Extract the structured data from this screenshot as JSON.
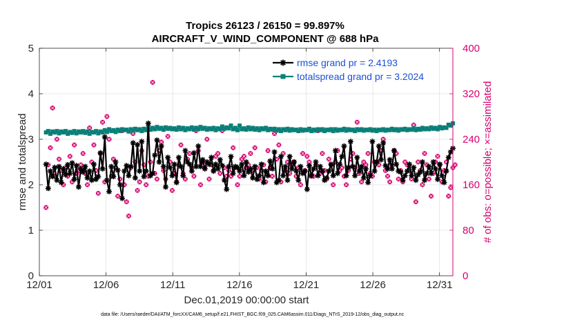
{
  "chart_data": {
    "type": "line",
    "title_line1": "Tropics 26123 / 26150 = 99.897%",
    "title_line2": "AIRCRAFT_V_WIND_COMPONENT @ 688 hPa",
    "xlabel": "Dec.01,2019 00:00:00 start",
    "ylabel_left": "rmse and totalspread",
    "ylabel_right": "# of obs: o=possible; ×=assimilated",
    "footnote": "data file: /Users/raeder/DAI/ATM_forcXX/CAM6_setup/f.e21.FHIST_BGC.f09_025.CAM6assim.011/Diags_NTrS_2019-12/obs_diag_output.nc",
    "xlim": [
      1,
      32
    ],
    "ylim_left": [
      0,
      5
    ],
    "ylim_right": [
      0,
      400
    ],
    "x_ticks": [
      1,
      6,
      11,
      16,
      21,
      26,
      31
    ],
    "x_tick_labels": [
      "12/01",
      "12/06",
      "12/11",
      "12/16",
      "12/21",
      "12/26",
      "12/31"
    ],
    "y_ticks_left": [
      "0",
      "1",
      "2",
      "3",
      "4",
      "5"
    ],
    "y_ticks_right": [
      "0",
      "80",
      "160",
      "240",
      "320",
      "400"
    ],
    "grid": true,
    "legend": [
      {
        "label": "rmse grand pr = 2.4193",
        "color": "#000000"
      },
      {
        "label": "totalspread grand pr = 3.2024",
        "color": "#0b7f78"
      }
    ],
    "series": [
      {
        "name": "rmse",
        "axis": "left",
        "color": "#000000",
        "values": [
          2.45,
          1.92,
          2.3,
          2.18,
          2.38,
          2.1,
          2.4,
          2.05,
          2.35,
          2.22,
          2.44,
          2.25,
          2.48,
          2.12,
          2.42,
          1.95,
          2.35,
          2.28,
          2.4,
          2.15,
          2.3,
          2.1,
          2.45,
          2.12,
          2.18,
          2.7,
          2.35,
          3.05,
          2.1,
          1.85,
          2.4,
          2.18,
          2.5,
          2.32,
          2.0,
          1.7,
          2.3,
          2.42,
          2.2,
          2.4,
          2.92,
          2.15,
          2.88,
          2.3,
          2.95,
          2.18,
          2.3,
          3.35,
          2.2,
          2.25,
          2.65,
          2.98,
          2.5,
          2.85,
          2.4,
          1.95,
          2.6,
          2.38,
          2.2,
          2.45,
          2.05,
          2.6,
          2.4,
          2.2,
          2.75,
          2.5,
          2.45,
          2.3,
          2.7,
          2.4,
          2.85,
          2.4,
          2.55,
          2.35,
          2.5,
          2.45,
          2.6,
          2.3,
          2.45,
          2.35,
          2.55,
          2.42,
          2.1,
          1.9,
          2.4,
          2.62,
          2.25,
          2.4,
          2.38,
          2.3,
          2.45,
          2.2,
          2.5,
          2.28,
          2.35,
          2.15,
          2.4,
          2.12,
          2.2,
          2.45,
          2.05,
          2.3,
          2.2,
          2.52,
          2.35,
          2.72,
          2.05,
          2.1,
          2.62,
          2.2,
          2.4,
          2.1,
          2.62,
          2.35,
          2.5,
          2.3,
          2.1,
          2.4,
          2.25,
          2.3,
          1.9,
          2.42,
          2.2,
          2.35,
          2.5,
          2.2,
          2.4,
          2.3,
          2.1,
          2.15,
          2.3,
          2.45,
          2.2,
          2.75,
          2.25,
          2.45,
          2.62,
          2.85,
          2.2,
          2.38,
          2.95,
          2.4,
          2.2,
          2.6,
          2.3,
          2.4,
          2.15,
          2.35,
          2.05,
          2.2,
          2.95,
          2.3,
          2.5,
          2.85,
          2.55,
          2.92,
          2.42,
          2.35,
          2.55,
          2.35,
          2.75,
          2.45,
          2.3,
          2.28,
          2.1,
          2.2,
          2.3,
          2.45,
          2.2,
          2.38,
          2.1,
          2.22,
          2.28,
          2.5,
          2.1,
          2.25,
          2.4,
          2.25,
          2.5,
          2.35,
          2.12,
          2.45,
          2.2,
          2.05,
          2.3,
          2.6,
          2.72,
          2.8
        ]
      },
      {
        "name": "totalspread",
        "axis": "left",
        "color": "#0b7f78",
        "values": [
          3.15,
          3.18,
          3.12,
          3.17,
          3.15,
          3.18,
          3.13,
          3.17,
          3.15,
          3.18,
          3.12,
          3.16,
          3.14,
          3.18,
          3.13,
          3.17,
          3.15,
          3.18,
          3.14,
          3.17,
          3.12,
          3.16,
          3.15,
          3.18,
          3.13,
          3.17,
          3.15,
          3.2,
          3.16,
          3.22,
          3.18,
          3.2,
          3.16,
          3.21,
          3.18,
          3.22,
          3.2,
          3.21,
          3.17,
          3.22,
          3.19,
          3.23,
          3.2,
          3.22,
          3.18,
          3.23,
          3.2,
          3.26,
          3.21,
          3.25,
          3.22,
          3.27,
          3.23,
          3.25,
          3.21,
          3.26,
          3.23,
          3.25,
          3.22,
          3.24,
          3.21,
          3.26,
          3.22,
          3.25,
          3.2,
          3.24,
          3.22,
          3.26,
          3.21,
          3.25,
          3.22,
          3.27,
          3.23,
          3.25,
          3.21,
          3.24,
          3.22,
          3.25,
          3.2,
          3.24,
          3.22,
          3.28,
          3.23,
          3.26,
          3.24,
          3.3,
          3.22,
          3.25,
          3.2,
          3.3,
          3.22,
          3.24,
          3.21,
          3.26,
          3.22,
          3.25,
          3.21,
          3.24,
          3.2,
          3.24,
          3.22,
          3.25,
          3.2,
          3.23,
          3.21,
          3.23,
          3.19,
          3.22,
          3.18,
          3.22,
          3.2,
          3.23,
          3.19,
          3.22,
          3.2,
          3.21,
          3.18,
          3.22,
          3.19,
          3.21,
          3.2,
          3.23,
          3.18,
          3.21,
          3.19,
          3.22,
          3.2,
          3.22,
          3.18,
          3.21,
          3.2,
          3.22,
          3.18,
          3.22,
          3.19,
          3.21,
          3.2,
          3.23,
          3.19,
          3.22,
          3.2,
          3.21,
          3.18,
          3.22,
          3.2,
          3.22,
          3.19,
          3.21,
          3.2,
          3.22,
          3.19,
          3.21,
          3.18,
          3.21,
          3.2,
          3.22,
          3.19,
          3.21,
          3.2,
          3.23,
          3.2,
          3.22,
          3.19,
          3.22,
          3.21,
          3.23,
          3.2,
          3.22,
          3.21,
          3.24,
          3.2,
          3.23,
          3.21,
          3.25,
          3.22,
          3.24,
          3.22,
          3.26,
          3.23,
          3.25,
          3.22,
          3.27,
          3.24,
          3.26,
          3.25,
          3.32,
          3.3,
          3.35
        ]
      },
      {
        "name": "obs_count",
        "axis": "right",
        "color": "#d6006f",
        "values": [
          120,
          195,
          225,
          295,
          175,
          240,
          205,
          185,
          160,
          190,
          175,
          210,
          165,
          230,
          180,
          185,
          195,
          215,
          180,
          160,
          260,
          200,
          230,
          185,
          145,
          215,
          270,
          165,
          280,
          240,
          175,
          205,
          190,
          140,
          170,
          255,
          160,
          130,
          105,
          190,
          250,
          200,
          150,
          165,
          220,
          195,
          160,
          175,
          200,
          340,
          180,
          170,
          220,
          235,
          185,
          170,
          245,
          200,
          150,
          180,
          165,
          195,
          230,
          180,
          170,
          205,
          215,
          190,
          175,
          255,
          220,
          160,
          200,
          190,
          240,
          170,
          195,
          185,
          210,
          215,
          180,
          255,
          190,
          175,
          185,
          175,
          225,
          190,
          160,
          175,
          205,
          210,
          190,
          195,
          215,
          185,
          225,
          190,
          170,
          185,
          195,
          165,
          220,
          190,
          175,
          250,
          205,
          230,
          165,
          215,
          185,
          200,
          180,
          195,
          200,
          175,
          190,
          160,
          215,
          185,
          210,
          200,
          175,
          175,
          195,
          255,
          180,
          215,
          185,
          170,
          205,
          195,
          160,
          200,
          220,
          185,
          190,
          175,
          160,
          185,
          205,
          215,
          190,
          270,
          180,
          165,
          200,
          195,
          215,
          180,
          175,
          200,
          200,
          195,
          220,
          240,
          185,
          175,
          165,
          195,
          220,
          215,
          170,
          185,
          165,
          200,
          195,
          185,
          170,
          265,
          130,
          200,
          185,
          160,
          215,
          195,
          170,
          140,
          180,
          200,
          210,
          195,
          165,
          185,
          200,
          140,
          155,
          190,
          195
        ]
      }
    ]
  }
}
